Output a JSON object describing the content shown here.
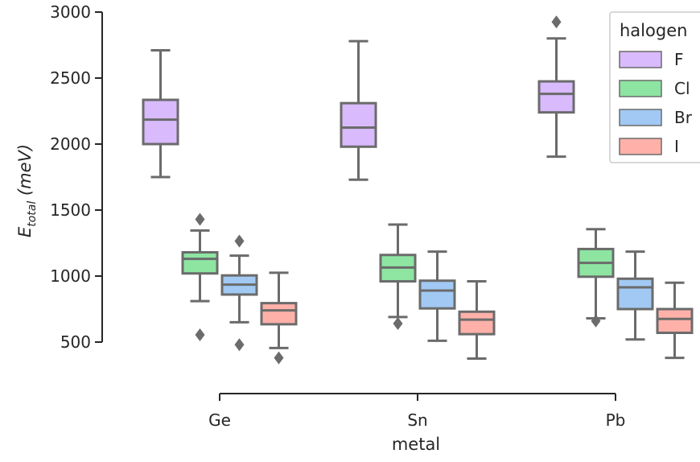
{
  "chart_data": {
    "type": "box",
    "xlabel": "metal",
    "ylabel": "E",
    "ylabel_sub": "total",
    "ylabel_unit": "(meV)",
    "categories": [
      "Ge",
      "Sn",
      "Pb"
    ],
    "ylim": [
      500,
      3000
    ],
    "yticks": [
      500,
      1000,
      1500,
      2000,
      2500,
      3000
    ],
    "grid": false,
    "legend": {
      "title": "halogen",
      "placement": "top-right"
    },
    "colors": {
      "box_edge": "#6b6b6b",
      "axis": "#262626",
      "legend_border": "#cccccc"
    },
    "series": [
      {
        "name": "F",
        "color": "#d8bafd",
        "boxes": [
          {
            "category": "Ge",
            "whisker_low": 1750,
            "q1": 2000,
            "median": 2185,
            "q3": 2335,
            "whisker_high": 2710,
            "outliers": []
          },
          {
            "category": "Sn",
            "whisker_low": 1730,
            "q1": 1980,
            "median": 2125,
            "q3": 2310,
            "whisker_high": 2780,
            "outliers": []
          },
          {
            "category": "Pb",
            "whisker_low": 1905,
            "q1": 2240,
            "median": 2380,
            "q3": 2475,
            "whisker_high": 2800,
            "outliers": [
              2925
            ]
          }
        ]
      },
      {
        "name": "Cl",
        "color": "#8de5a1",
        "boxes": [
          {
            "category": "Ge",
            "whisker_low": 810,
            "q1": 1020,
            "median": 1130,
            "q3": 1180,
            "whisker_high": 1345,
            "outliers": [
              1430,
              555
            ]
          },
          {
            "category": "Sn",
            "whisker_low": 690,
            "q1": 960,
            "median": 1065,
            "q3": 1160,
            "whisker_high": 1390,
            "outliers": [
              640
            ]
          },
          {
            "category": "Pb",
            "whisker_low": 680,
            "q1": 995,
            "median": 1100,
            "q3": 1205,
            "whisker_high": 1355,
            "outliers": [
              660
            ]
          }
        ]
      },
      {
        "name": "Br",
        "color": "#a1c9f4",
        "boxes": [
          {
            "category": "Ge",
            "whisker_low": 650,
            "q1": 860,
            "median": 935,
            "q3": 1005,
            "whisker_high": 1155,
            "outliers": [
              1265,
              480
            ]
          },
          {
            "category": "Sn",
            "whisker_low": 510,
            "q1": 755,
            "median": 890,
            "q3": 965,
            "whisker_high": 1185,
            "outliers": []
          },
          {
            "category": "Pb",
            "whisker_low": 520,
            "q1": 750,
            "median": 915,
            "q3": 980,
            "whisker_high": 1185,
            "outliers": []
          }
        ]
      },
      {
        "name": "I",
        "color": "#ffb1a9",
        "boxes": [
          {
            "category": "Ge",
            "whisker_low": 455,
            "q1": 635,
            "median": 740,
            "q3": 795,
            "whisker_high": 1025,
            "outliers": [
              380
            ]
          },
          {
            "category": "Sn",
            "whisker_low": 375,
            "q1": 560,
            "median": 670,
            "q3": 730,
            "whisker_high": 960,
            "outliers": []
          },
          {
            "category": "Pb",
            "whisker_low": 380,
            "q1": 570,
            "median": 675,
            "q3": 750,
            "whisker_high": 950,
            "outliers": []
          }
        ]
      }
    ]
  }
}
